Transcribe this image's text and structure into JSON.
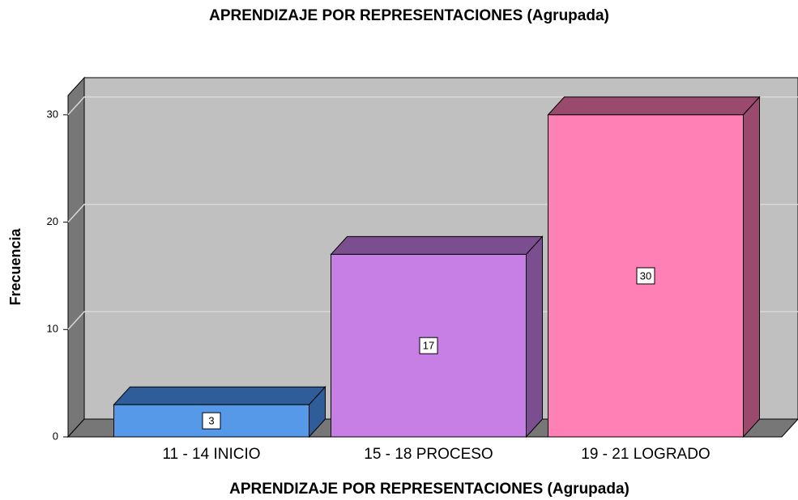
{
  "chart_data": {
    "type": "bar3d",
    "title": "APRENDIZAJE POR REPRESENTACIONES (Agrupada)",
    "x_label": "APRENDIZAJE POR REPRESENTACIONES (Agrupada)",
    "y_label": "Frecuencia",
    "categories": [
      "11 - 14 INICIO",
      "15 - 18 PROCESO",
      "19 - 21 LOGRADO"
    ],
    "values": [
      3,
      17,
      30
    ],
    "colors": [
      "#5599e8",
      "#c77fe6",
      "#ff80b4"
    ],
    "side_colors": [
      "#2f5d99",
      "#7b4f8f",
      "#9a4a6c"
    ],
    "ylim": [
      0,
      31.8
    ],
    "yticks": [
      0,
      10,
      20,
      30
    ],
    "grid": true
  }
}
